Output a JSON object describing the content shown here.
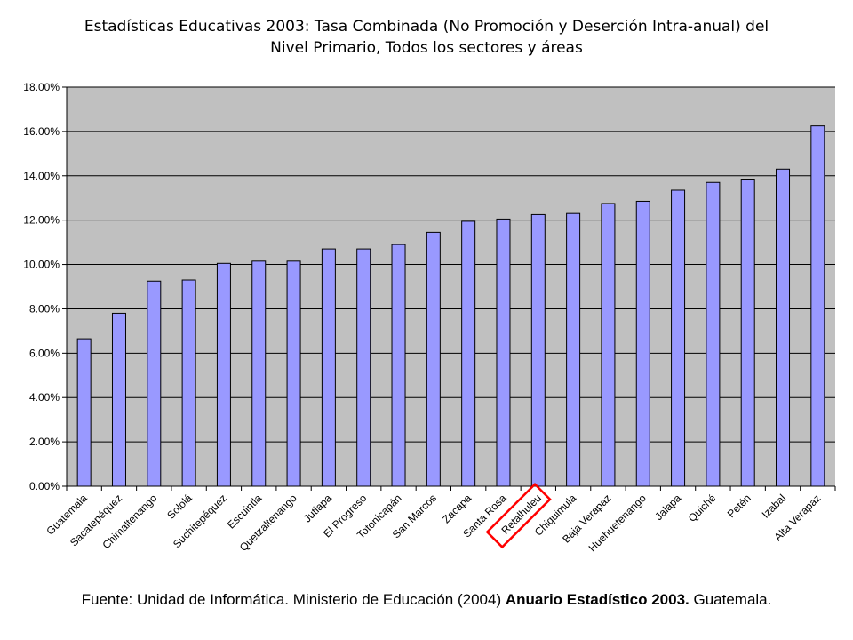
{
  "chart_data": {
    "type": "bar",
    "title_line1": "Estadísticas Educativas 2003: Tasa Combinada (No Promoción y Deserción Intra-anual) del",
    "title_line2": "Nivel Primario, Todos los sectores y áreas",
    "categories": [
      "Guatemala",
      "Sacatepéquez",
      "Chimaltenango",
      "Sololá",
      "Suchitepéquez",
      "Escuintla",
      "Quetzaltenango",
      "Jutiapa",
      "El Progreso",
      "Totonicapán",
      "San Marcos",
      "Zacapa",
      "Santa Rosa",
      "Retalhuleu",
      "Chiquimula",
      "Baja Verapaz",
      "Huehuetenango",
      "Jalapa",
      "Quiché",
      "Petén",
      "Izabal",
      "Alta Verapaz"
    ],
    "values": [
      6.65,
      7.8,
      9.25,
      9.3,
      10.05,
      10.15,
      10.15,
      10.7,
      10.7,
      10.9,
      11.45,
      11.95,
      12.05,
      12.25,
      12.3,
      12.75,
      12.85,
      13.35,
      13.7,
      13.85,
      14.3,
      16.25
    ],
    "yticks": [
      "0.00%",
      "2.00%",
      "4.00%",
      "6.00%",
      "8.00%",
      "10.00%",
      "12.00%",
      "14.00%",
      "16.00%",
      "18.00%"
    ],
    "ylim": [
      0,
      18
    ],
    "grid": true,
    "legend": "none",
    "highlighted_category": "Retalhuleu",
    "colors": {
      "plot_background": "#c0c0c0",
      "bar_fill": "#9999ff",
      "bar_stroke": "#000000",
      "highlight_box": "#ff0000"
    }
  },
  "source": {
    "normal_text": "Fuente: Unidad de Informática. Ministerio de Educación (2004) ",
    "bold_text": "Anuario Estadístico 2003.",
    "end_text": " Guatemala."
  }
}
